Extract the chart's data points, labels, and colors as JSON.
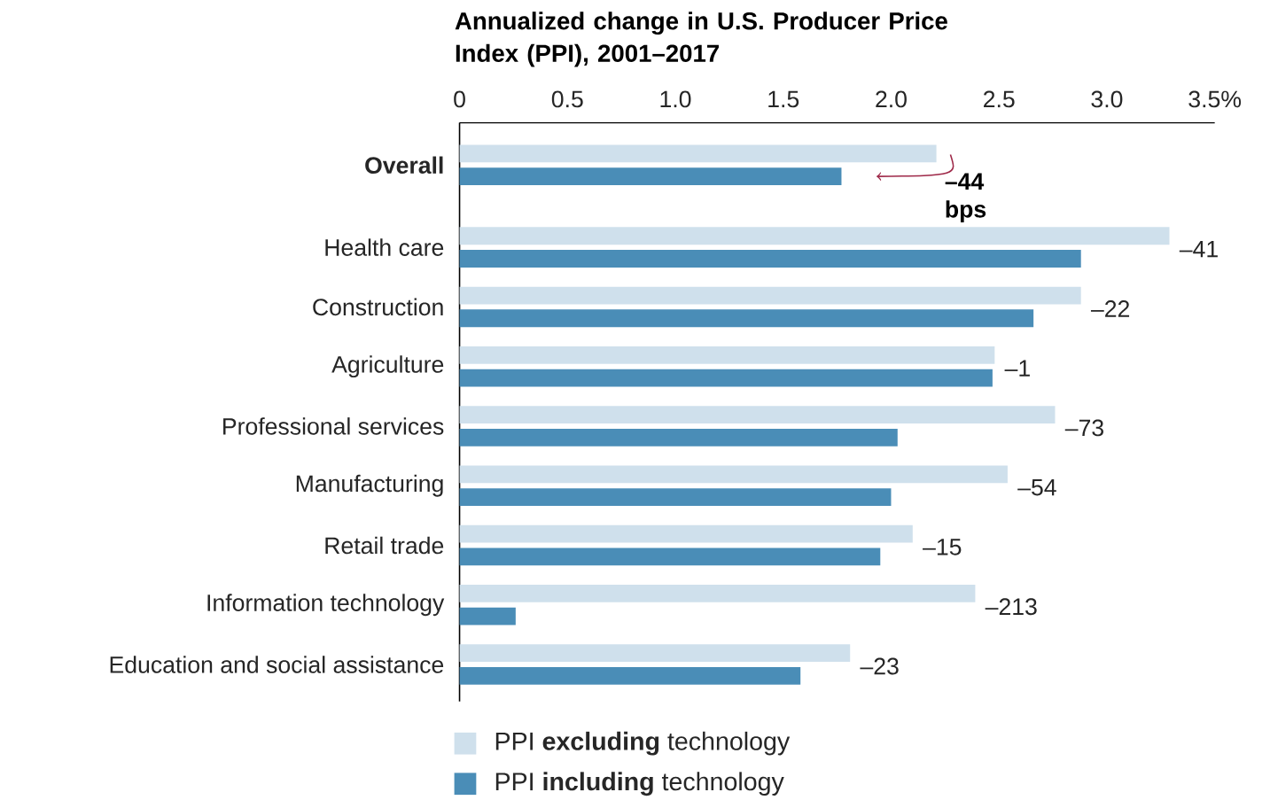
{
  "chart_data": {
    "type": "bar",
    "orientation": "horizontal",
    "title": "Annualized change in U.S. Producer Price Index (PPI), 2001–2017",
    "categories": [
      "Overall",
      "Health care",
      "Construction",
      "Agriculture",
      "Professional services",
      "Manufacturing",
      "Retail trade",
      "Information technology",
      "Education and social assistance"
    ],
    "series": [
      {
        "name": "PPI **excluding** technology",
        "color": "#cfe0ec",
        "values": [
          2.21,
          3.29,
          2.88,
          2.48,
          2.76,
          2.54,
          2.1,
          2.39,
          1.81
        ]
      },
      {
        "name": "PPI **including** technology",
        "color": "#4a8db7",
        "values": [
          1.77,
          2.88,
          2.66,
          2.47,
          2.03,
          2.0,
          1.95,
          0.26,
          1.58
        ]
      }
    ],
    "xlim": [
      0,
      3.5
    ],
    "xticks": [
      0,
      0.5,
      {
        "value": 1,
        "label": "1.0"
      },
      1.5,
      {
        "value": 2,
        "label": "2.0"
      },
      2.5,
      {
        "value": 3,
        "label": "3.0"
      },
      {
        "value": 3.5,
        "label": "3.5%"
      }
    ],
    "annotations": [
      "–44 bps",
      "–41",
      "–22",
      "–1",
      "–73",
      "–54",
      "–15",
      "–213",
      "–23"
    ],
    "legend": "bottom",
    "grid": false
  }
}
